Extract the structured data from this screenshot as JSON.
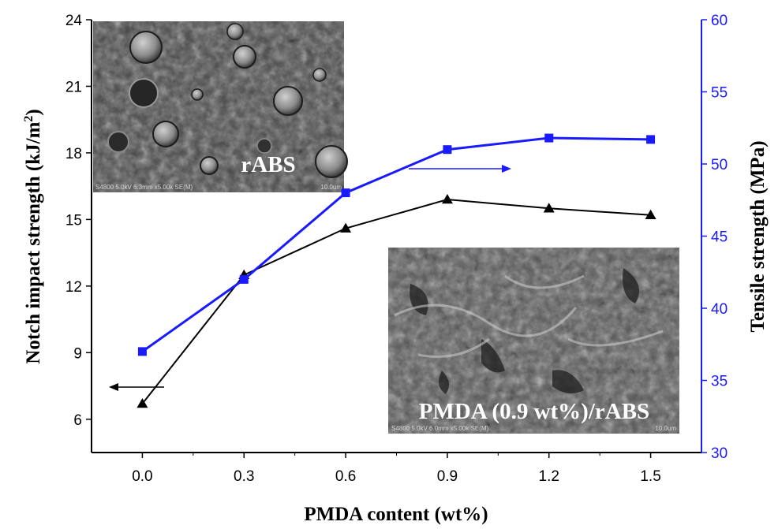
{
  "chart_data": {
    "type": "line",
    "xlabel": "PMDA content (wt%)",
    "ylabel_left": "Notch impact strength (kJ/m",
    "ylabel_left_sup": "2",
    "ylabel_left_close": ")",
    "ylabel_right": "Tensile strength (MPa)",
    "xlim": [
      -0.15,
      1.65
    ],
    "ylim_left": [
      4.5,
      24
    ],
    "ylim_right": [
      30,
      60
    ],
    "x_ticks": [
      "0.0",
      "0.3",
      "0.6",
      "0.9",
      "1.2",
      "1.5"
    ],
    "y_left_ticks": [
      "6",
      "9",
      "12",
      "15",
      "18",
      "21",
      "24"
    ],
    "y_right_ticks": [
      "30",
      "35",
      "40",
      "45",
      "50",
      "55",
      "60"
    ],
    "right_axis_color": "#1a1aff",
    "grid": false,
    "series": [
      {
        "axis": "left",
        "marker": "triangle",
        "color": "#000000",
        "x": [
          0.0,
          0.3,
          0.6,
          0.9,
          1.2,
          1.5
        ],
        "values": [
          6.7,
          12.5,
          14.6,
          15.9,
          15.5,
          15.2
        ]
      },
      {
        "axis": "right",
        "marker": "square",
        "color": "#1a1aff",
        "x": [
          0.0,
          0.3,
          0.6,
          0.9,
          1.2,
          1.5
        ],
        "values": [
          37.0,
          42.0,
          48.0,
          51.0,
          51.8,
          51.7
        ]
      }
    ],
    "insets": [
      {
        "caption": "rABS",
        "scale_text": "S4800 5.0kV 6.3mm x5.00k SE(M)",
        "scale_bar": "10.0um"
      },
      {
        "caption": "PMDA (0.9 wt%)/rABS",
        "scale_text": "S4800 5.0kV 6.0mm x5.00k SE(M)",
        "scale_bar": "10.0um"
      }
    ]
  }
}
